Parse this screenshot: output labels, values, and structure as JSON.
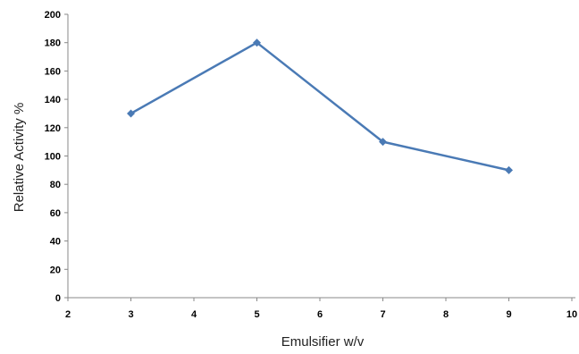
{
  "chart_data": {
    "type": "line",
    "xlabel": "Emulsifier w/v",
    "ylabel": "Relative Activity %",
    "xlim": [
      2,
      10
    ],
    "ylim": [
      0,
      200
    ],
    "x_ticks": [
      2,
      3,
      4,
      5,
      6,
      7,
      8,
      9,
      10
    ],
    "y_ticks": [
      0,
      20,
      40,
      60,
      80,
      100,
      120,
      140,
      160,
      180,
      200
    ],
    "grid": false,
    "series": [
      {
        "marker": "diamond",
        "color": "#4a7ab5",
        "points": [
          {
            "x": 3,
            "y": 130
          },
          {
            "x": 5,
            "y": 180
          },
          {
            "x": 7,
            "y": 110
          },
          {
            "x": 9,
            "y": 90
          }
        ]
      }
    ]
  }
}
